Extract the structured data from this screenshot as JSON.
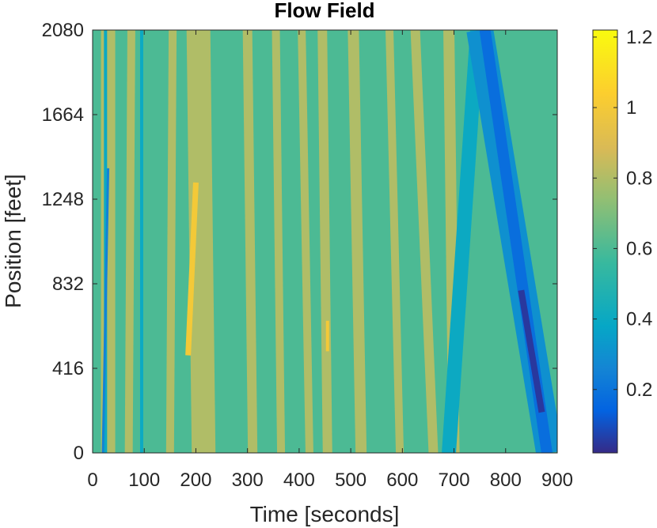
{
  "chart_data": {
    "type": "heatmap",
    "title": "Flow Field",
    "xlabel": "Time [seconds]",
    "ylabel": "Position [feet]",
    "xlim": [
      0,
      900
    ],
    "ylim": [
      0,
      2080
    ],
    "xticks": [
      0,
      100,
      200,
      300,
      400,
      500,
      600,
      700,
      800,
      900
    ],
    "xtick_labels": [
      "0",
      "100",
      "200",
      "300",
      "400",
      "500",
      "600",
      "700",
      "800",
      "900"
    ],
    "yticks": [
      0,
      416,
      832,
      1248,
      1664,
      2080
    ],
    "ytick_labels": [
      "0",
      "416",
      "832",
      "1248",
      "1664",
      "2080"
    ],
    "colorbar": {
      "limits": [
        0.02,
        1.22
      ],
      "ticks": [
        0.2,
        0.4,
        0.6,
        0.8,
        1,
        1.2
      ],
      "tick_labels": [
        "0.2",
        "0.4",
        "0.6",
        "0.8",
        "1",
        "1.2"
      ],
      "colormap": "parula"
    },
    "background_level": 0.6,
    "bands": [
      {
        "t0": 30,
        "t1": 30,
        "p0": 0,
        "p1": 2080,
        "width": 18,
        "level": 0.8
      },
      {
        "t0": 70,
        "t1": 75,
        "p0": 0,
        "p1": 2080,
        "width": 10,
        "level": 0.8
      },
      {
        "t0": 150,
        "t1": 155,
        "p0": 0,
        "p1": 2080,
        "width": 10,
        "level": 0.8
      },
      {
        "t0": 215,
        "t1": 205,
        "p0": 0,
        "p1": 2080,
        "width": 30,
        "level": 0.8
      },
      {
        "t0": 310,
        "t1": 300,
        "p0": 0,
        "p1": 2080,
        "width": 12,
        "level": 0.8
      },
      {
        "t0": 365,
        "t1": 355,
        "p0": 0,
        "p1": 2080,
        "width": 10,
        "level": 0.8
      },
      {
        "t0": 420,
        "t1": 405,
        "p0": 0,
        "p1": 2080,
        "width": 10,
        "level": 0.8
      },
      {
        "t0": 455,
        "t1": 445,
        "p0": 0,
        "p1": 2080,
        "width": 12,
        "level": 0.8
      },
      {
        "t0": 520,
        "t1": 505,
        "p0": 0,
        "p1": 2080,
        "width": 14,
        "level": 0.8
      },
      {
        "t0": 595,
        "t1": 575,
        "p0": 0,
        "p1": 2080,
        "width": 10,
        "level": 0.8
      },
      {
        "t0": 660,
        "t1": 625,
        "p0": 0,
        "p1": 2080,
        "width": 12,
        "level": 0.8
      },
      {
        "t0": 700,
        "t1": 690,
        "p0": 0,
        "p1": 2080,
        "width": 14,
        "level": 0.8
      },
      {
        "t0": 185,
        "t1": 200,
        "p0": 480,
        "p1": 1330,
        "width": 7,
        "level": 1.0
      },
      {
        "t0": 455,
        "t1": 455,
        "p0": 500,
        "p1": 650,
        "width": 4,
        "level": 1.0
      },
      {
        "t0": 25,
        "t1": 25,
        "p0": 0,
        "p1": 2080,
        "width": 4,
        "level": 0.4
      },
      {
        "t0": 95,
        "t1": 95,
        "p0": 0,
        "p1": 2080,
        "width": 4,
        "level": 0.4
      },
      {
        "t0": 20,
        "t1": 30,
        "p0": 0,
        "p1": 1400,
        "width": 3,
        "level": 0.25
      },
      {
        "t0": 690,
        "t1": 745,
        "p0": 0,
        "p1": 2080,
        "width": 18,
        "level": 0.4
      },
      {
        "t0": 885,
        "t1": 750,
        "p0": 0,
        "p1": 2080,
        "width": 34,
        "level": 0.3
      },
      {
        "t0": 880,
        "t1": 760,
        "p0": 0,
        "p1": 2080,
        "width": 14,
        "level": 0.18
      },
      {
        "t0": 870,
        "t1": 830,
        "p0": 200,
        "p1": 800,
        "width": 8,
        "level": 0.05
      }
    ]
  }
}
